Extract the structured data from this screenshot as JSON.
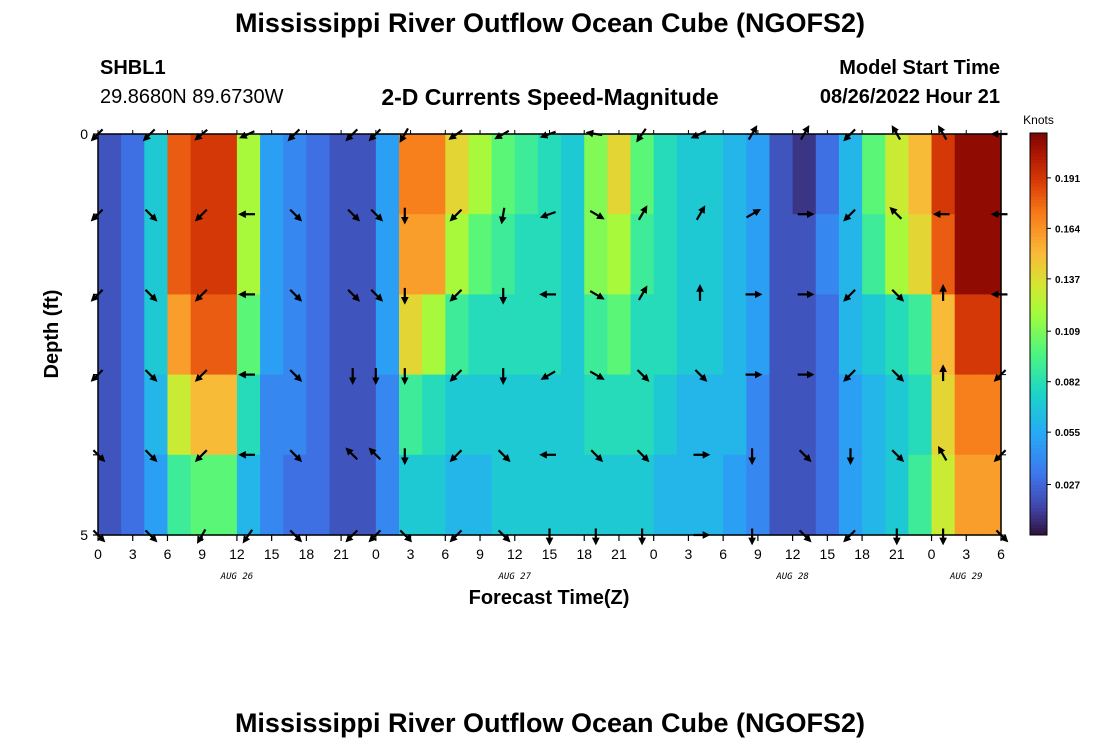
{
  "header": {
    "title": "Mississippi River Outflow Ocean Cube (NGOFS2)",
    "station_id": "SHBL1",
    "coords": "29.8680N  89.6730W",
    "subtitle": "2-D Currents Speed-Magnitude",
    "model_start_label": "Model Start Time",
    "model_start_value": "08/26/2022 Hour 21"
  },
  "footer": {
    "title": "Mississippi River Outflow Ocean Cube (NGOFS2)"
  },
  "chart_data": {
    "type": "heatmap",
    "title": "2-D Currents Speed-Magnitude",
    "xlabel": "Forecast Time(Z)",
    "ylabel": "Depth (ft)",
    "x_tick_labels": [
      "0",
      "3",
      "6",
      "9",
      "12",
      "15",
      "18",
      "21",
      "0",
      "3",
      "6",
      "9",
      "12",
      "15",
      "18",
      "21",
      "0",
      "3",
      "6",
      "9",
      "12",
      "15",
      "18",
      "21",
      "0",
      "3",
      "6"
    ],
    "day_labels": [
      {
        "label": "AUG 26",
        "hour": 12
      },
      {
        "label": "AUG 27",
        "hour": 36
      },
      {
        "label": "AUG 28",
        "hour": 60
      },
      {
        "label": "AUG 29",
        "hour": 75
      }
    ],
    "y_tick_labels": [
      "0",
      "5"
    ],
    "yrange": [
      0,
      5
    ],
    "xrange_hours": [
      0,
      78
    ],
    "colorbar": {
      "title": "Knots",
      "tick_labels": [
        "0.191",
        "0.164",
        "0.137",
        "0.109",
        "0.082",
        "0.055",
        "0.027"
      ],
      "range": [
        0.0,
        0.215
      ],
      "colormap": "turbo"
    },
    "depth_rows": 5,
    "speed_knots": [
      [
        0.02,
        0.03,
        0.07,
        0.18,
        0.19,
        0.19,
        0.12,
        0.05,
        0.04,
        0.03,
        0.02,
        0.02,
        0.05,
        0.17,
        0.17,
        0.14,
        0.12,
        0.1,
        0.09,
        0.08,
        0.07,
        0.11,
        0.14,
        0.1,
        0.08,
        0.07,
        0.07,
        0.06,
        0.05,
        0.02,
        0.01,
        0.03,
        0.06,
        0.1,
        0.13,
        0.15,
        0.19,
        0.21,
        0.21
      ],
      [
        0.02,
        0.03,
        0.07,
        0.18,
        0.19,
        0.19,
        0.12,
        0.05,
        0.04,
        0.03,
        0.02,
        0.02,
        0.05,
        0.16,
        0.16,
        0.12,
        0.1,
        0.09,
        0.08,
        0.08,
        0.07,
        0.11,
        0.12,
        0.09,
        0.08,
        0.07,
        0.07,
        0.06,
        0.05,
        0.02,
        0.02,
        0.04,
        0.06,
        0.09,
        0.12,
        0.14,
        0.18,
        0.21,
        0.21
      ],
      [
        0.02,
        0.03,
        0.07,
        0.16,
        0.18,
        0.18,
        0.1,
        0.05,
        0.04,
        0.03,
        0.02,
        0.02,
        0.05,
        0.14,
        0.12,
        0.09,
        0.08,
        0.08,
        0.08,
        0.08,
        0.07,
        0.09,
        0.1,
        0.08,
        0.08,
        0.07,
        0.07,
        0.06,
        0.05,
        0.02,
        0.02,
        0.03,
        0.06,
        0.07,
        0.08,
        0.09,
        0.15,
        0.19,
        0.19
      ],
      [
        0.02,
        0.03,
        0.06,
        0.13,
        0.15,
        0.15,
        0.08,
        0.04,
        0.04,
        0.03,
        0.02,
        0.02,
        0.04,
        0.09,
        0.08,
        0.07,
        0.07,
        0.07,
        0.07,
        0.07,
        0.07,
        0.08,
        0.08,
        0.08,
        0.07,
        0.06,
        0.06,
        0.06,
        0.04,
        0.02,
        0.02,
        0.03,
        0.05,
        0.06,
        0.07,
        0.08,
        0.14,
        0.17,
        0.17
      ],
      [
        0.02,
        0.03,
        0.05,
        0.09,
        0.1,
        0.1,
        0.06,
        0.04,
        0.03,
        0.03,
        0.02,
        0.02,
        0.04,
        0.07,
        0.07,
        0.06,
        0.06,
        0.07,
        0.07,
        0.07,
        0.07,
        0.07,
        0.07,
        0.07,
        0.06,
        0.06,
        0.06,
        0.05,
        0.04,
        0.02,
        0.02,
        0.03,
        0.05,
        0.06,
        0.07,
        0.09,
        0.13,
        0.16,
        0.16
      ]
    ],
    "arrow_hours": [
      0,
      4.5,
      9,
      13,
      17,
      22,
      24,
      26.5,
      31,
      35,
      39,
      43,
      47,
      52,
      56.5,
      61,
      65,
      69,
      73,
      78
    ],
    "arrow_rows": [
      [
        135,
        135,
        140,
        155,
        135,
        135,
        135,
        120,
        145,
        150,
        160,
        190,
        125,
        155,
        300,
        300,
        135,
        240,
        240,
        180
      ],
      [
        135,
        45,
        135,
        180,
        45,
        45,
        45,
        90,
        135,
        100,
        160,
        30,
        300,
        300,
        330,
        0,
        135,
        225,
        180,
        180
      ],
      [
        135,
        45,
        135,
        180,
        45,
        45,
        45,
        90,
        135,
        90,
        180,
        30,
        300,
        270,
        0,
        0,
        135,
        45,
        270,
        180
      ],
      [
        135,
        45,
        135,
        180,
        45,
        90,
        90,
        90,
        135,
        90,
        150,
        30,
        45,
        45,
        0,
        0,
        135,
        45,
        270,
        135
      ],
      [
        45,
        45,
        135,
        180,
        45,
        225,
        225,
        90,
        135,
        45,
        180,
        45,
        45,
        0,
        90,
        45,
        90,
        45,
        240,
        135
      ],
      [
        45,
        45,
        120,
        125,
        45,
        135,
        135,
        45,
        135,
        45,
        90,
        90,
        90,
        0,
        90,
        45,
        135,
        90,
        90,
        45
      ]
    ]
  }
}
